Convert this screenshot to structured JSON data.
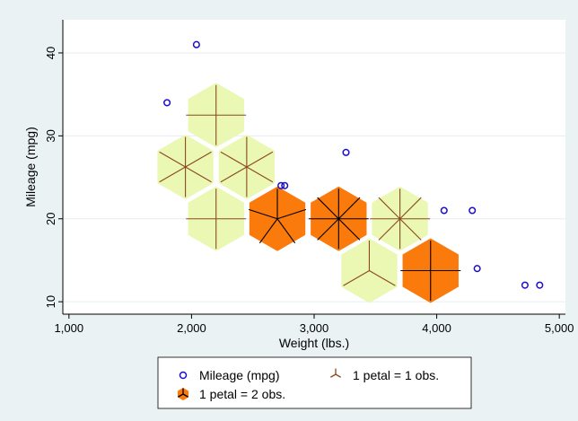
{
  "chart_data": {
    "type": "scatter",
    "subtype": "sunflower",
    "title": "",
    "xlabel": "Weight (lbs.)",
    "ylabel": "Mileage (mpg)",
    "xlim": [
      950,
      5050
    ],
    "ylim": [
      8.5,
      44
    ],
    "x_ticks": [
      1000,
      2000,
      3000,
      4000,
      5000
    ],
    "x_tick_labels": [
      "1,000",
      "2,000",
      "3,000",
      "4,000",
      "5,000"
    ],
    "y_ticks": [
      10,
      20,
      30,
      40
    ],
    "y_tick_labels": [
      "10",
      "20",
      "30",
      "40"
    ],
    "grid": "horizontal",
    "legend": {
      "placement": "bottom",
      "items": [
        {
          "label": "Mileage (mpg)",
          "symbol": "hollow-circle"
        },
        {
          "label": "1 petal = 1 obs.",
          "symbol": "light-sunflower"
        },
        {
          "label": "1 petal = 2 obs.",
          "symbol": "dark-sunflower"
        }
      ]
    },
    "colors": {
      "background": "#eaf2f3",
      "plot_background": "#ffffff",
      "grid": "#e6eef0",
      "marker": "#1a0dcc",
      "light_fill": "#eaf8b4",
      "dark_fill": "#fb7a0c",
      "light_petal": "#8a4a1c",
      "dark_petal": "#000000"
    },
    "series": [
      {
        "name": "Mileage (mpg)",
        "points": [
          {
            "x": 1800,
            "y": 34
          },
          {
            "x": 2040,
            "y": 41
          },
          {
            "x": 2730,
            "y": 24
          },
          {
            "x": 2760,
            "y": 24
          },
          {
            "x": 3260,
            "y": 28
          },
          {
            "x": 4060,
            "y": 21
          },
          {
            "x": 4290,
            "y": 21
          },
          {
            "x": 4330,
            "y": 14
          },
          {
            "x": 4720,
            "y": 12
          },
          {
            "x": 4840,
            "y": 12
          }
        ]
      }
    ],
    "sunflowers": [
      {
        "x": 2200,
        "y": 32.5,
        "petals": 4,
        "obs_per_petal": 1
      },
      {
        "x": 1950,
        "y": 26.25,
        "petals": 6,
        "obs_per_petal": 1
      },
      {
        "x": 2450,
        "y": 26.25,
        "petals": 6,
        "obs_per_petal": 1
      },
      {
        "x": 2200,
        "y": 20,
        "petals": 4,
        "obs_per_petal": 1
      },
      {
        "x": 2700,
        "y": 20,
        "petals": 5,
        "obs_per_petal": 2
      },
      {
        "x": 3200,
        "y": 20,
        "petals": 8,
        "obs_per_petal": 2
      },
      {
        "x": 3700,
        "y": 20,
        "petals": 8,
        "obs_per_petal": 1
      },
      {
        "x": 3450,
        "y": 13.75,
        "petals": 3,
        "obs_per_petal": 1
      },
      {
        "x": 3950,
        "y": 13.75,
        "petals": 4,
        "obs_per_petal": 2
      }
    ]
  }
}
